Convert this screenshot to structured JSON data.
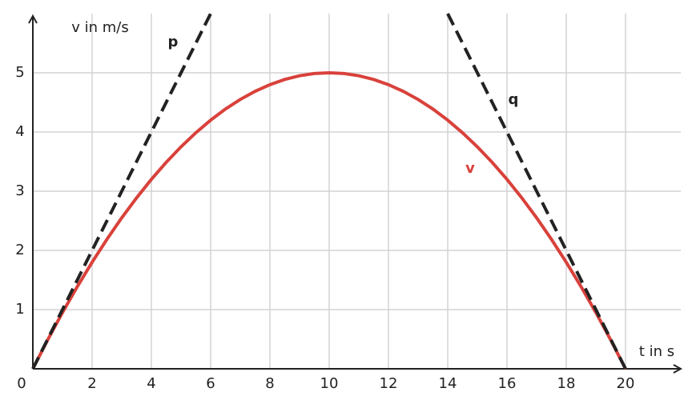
{
  "chart_data": {
    "type": "line",
    "x_label": "t in s",
    "y_label": "v in m/s",
    "xlim": [
      0,
      22
    ],
    "ylim": [
      0,
      6
    ],
    "xticks": [
      0,
      2,
      4,
      6,
      8,
      10,
      12,
      14,
      16,
      18,
      20
    ],
    "yticks": [
      1,
      2,
      3,
      4,
      5
    ],
    "grid": true,
    "series": [
      {
        "name": "v",
        "color": "#d9413b",
        "dashed": false,
        "x": [
          0,
          0.5,
          1,
          1.5,
          2,
          2.5,
          3,
          3.5,
          4,
          4.5,
          5,
          5.5,
          6,
          6.5,
          7,
          7.5,
          8,
          8.5,
          9,
          9.5,
          10,
          10.5,
          11,
          11.5,
          12,
          12.5,
          13,
          13.5,
          14,
          14.5,
          15,
          15.5,
          16,
          16.5,
          17,
          17.5,
          18,
          18.5,
          19,
          19.5,
          20
        ],
        "values": [
          0,
          0.4875,
          0.95,
          1.3875,
          1.8,
          2.1875,
          2.55,
          2.8875,
          3.2,
          3.4875,
          3.75,
          3.9875,
          4.2,
          4.3875,
          4.55,
          4.6875,
          4.8,
          4.8875,
          4.95,
          4.9875,
          5,
          4.9875,
          4.95,
          4.8875,
          4.8,
          4.6875,
          4.55,
          4.3875,
          4.2,
          3.9875,
          3.75,
          3.4875,
          3.2,
          2.8875,
          2.55,
          2.1875,
          1.8,
          1.3875,
          0.95,
          0.4875,
          0
        ]
      },
      {
        "name": "p",
        "color": "#222222",
        "dashed": true,
        "x": [
          0,
          6
        ],
        "values": [
          0,
          6
        ]
      },
      {
        "name": "q",
        "color": "#222222",
        "dashed": true,
        "x": [
          14,
          20
        ],
        "values": [
          6,
          0
        ]
      }
    ]
  }
}
